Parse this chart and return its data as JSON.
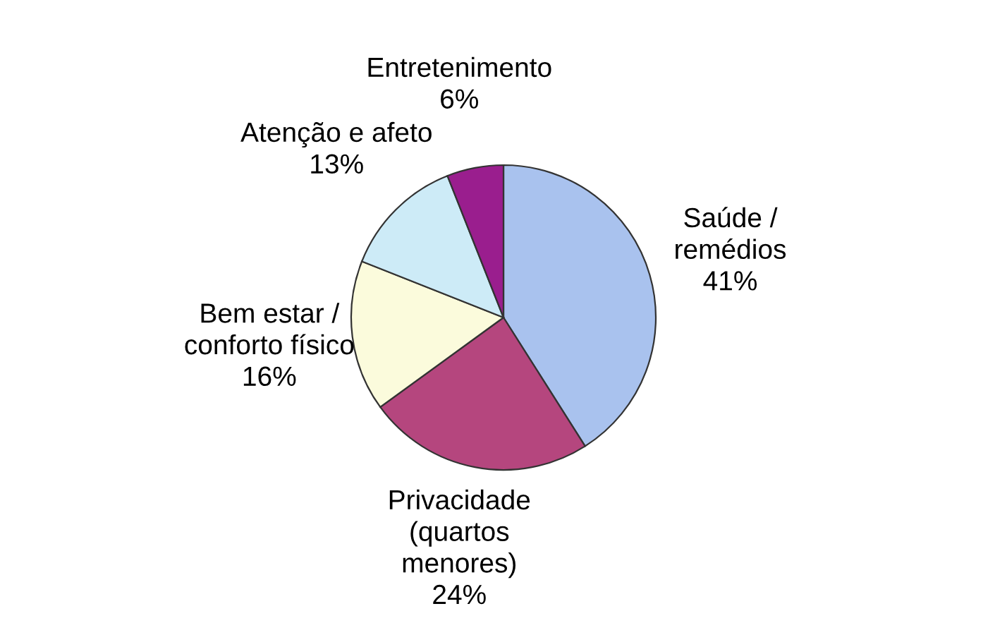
{
  "chart_data": {
    "type": "pie",
    "categories": [
      "Saúde /\nremédios",
      "Privacidade\n(quartos\nmenores)",
      "Bem estar /\nconforto físico",
      "Atenção e afeto",
      "Entretenimento"
    ],
    "values": [
      41,
      24,
      16,
      13,
      6
    ],
    "value_labels": [
      "41%",
      "24%",
      "16%",
      "13%",
      "6%"
    ],
    "colors": [
      "#a9c2ee",
      "#b5467e",
      "#fbfbdc",
      "#cdebf7",
      "#9a1e8e"
    ]
  }
}
